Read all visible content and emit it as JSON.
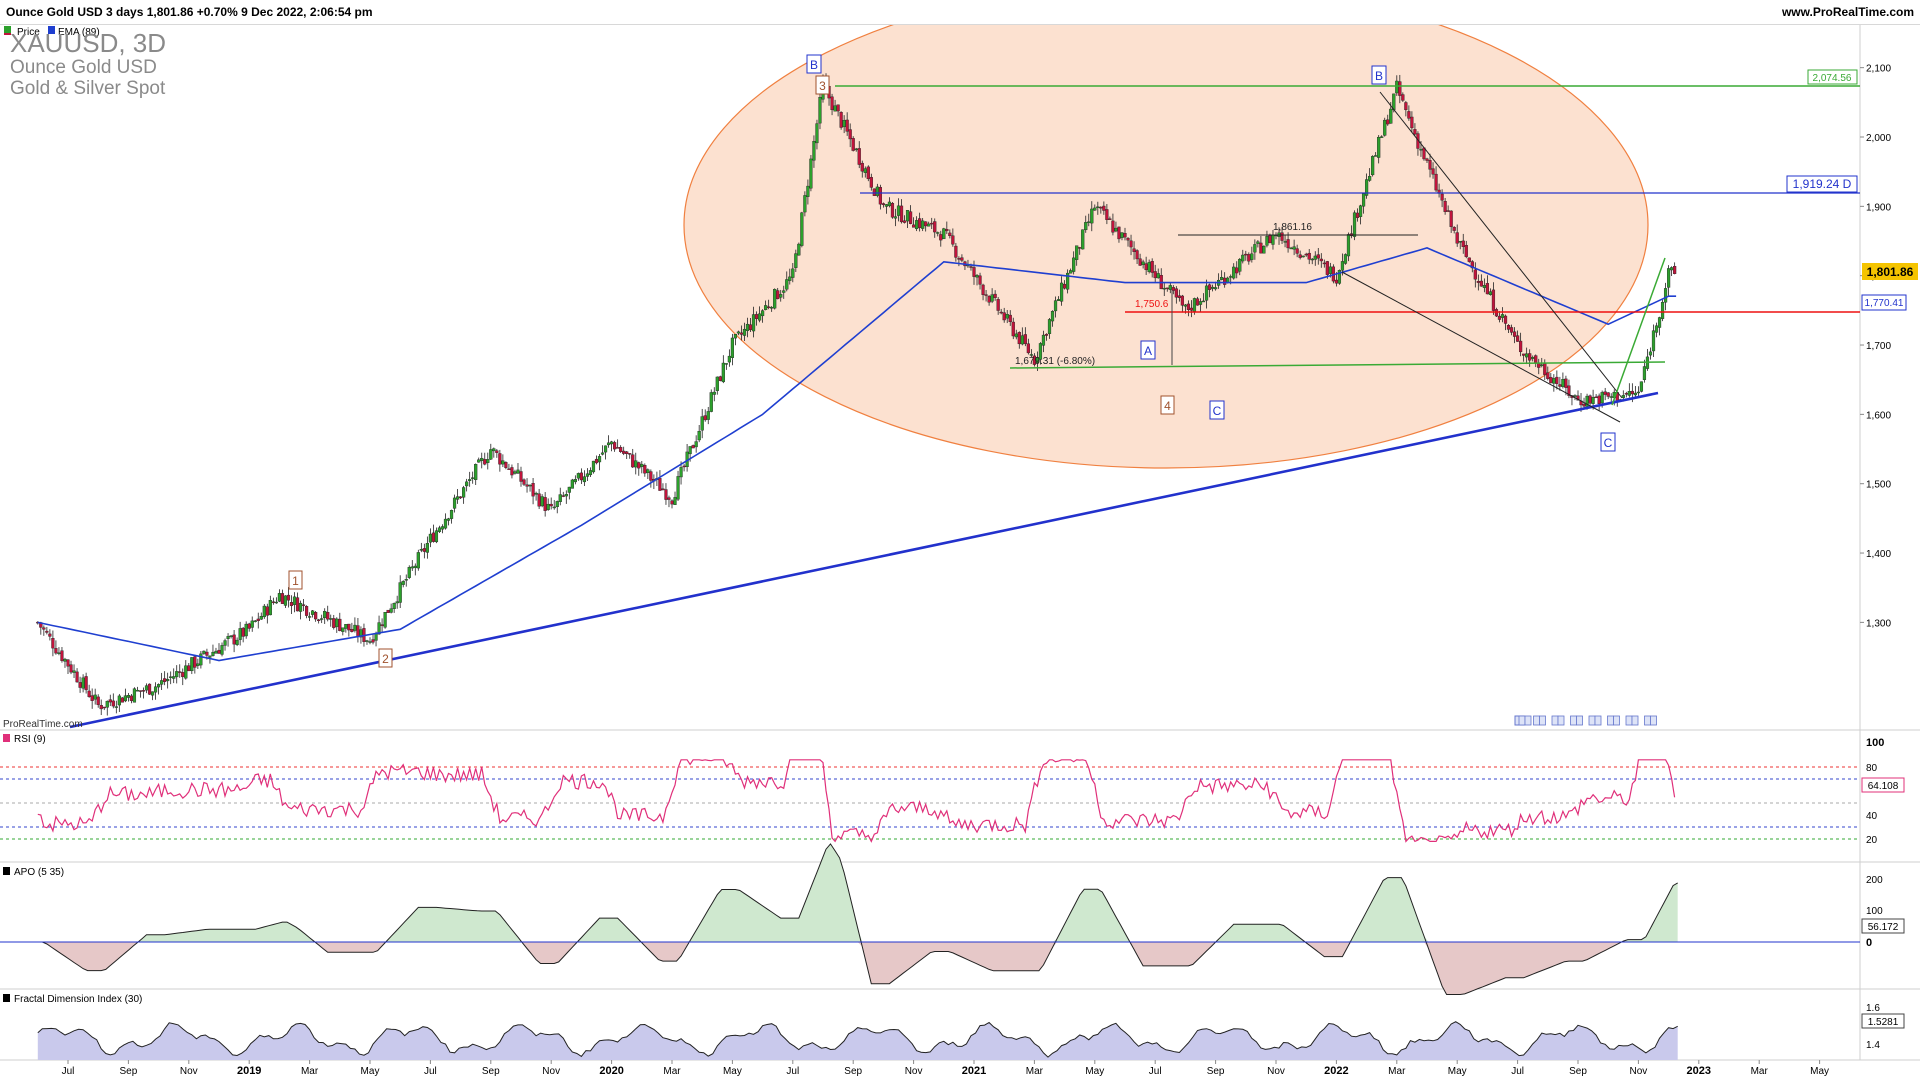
{
  "header": {
    "title_line": "Ounce Gold USD 3 days 1,801.86 +0.70% 9 Dec 2022, 2:06:54 pm",
    "site": "www.ProRealTime.com"
  },
  "main_panel": {
    "legend": [
      "Price",
      "EMA (89)"
    ],
    "symbol": "XAUUSD, 3D",
    "name": "Ounce Gold USD",
    "category": "Gold & Silver Spot",
    "watermark": "ProRealTime.com",
    "price_ticks": [
      "2,100",
      "2,000",
      "1,900",
      "1,800",
      "1,700",
      "1,600",
      "1,500",
      "1,400",
      "1,300"
    ],
    "price_tick_values": [
      2100,
      2000,
      1900,
      1800,
      1700,
      1600,
      1500,
      1400,
      1300
    ],
    "badges": {
      "last_price": "1,801.86",
      "ema": "1,770.41",
      "res_top": "2,074.56",
      "blue_line": "1,919.24 D"
    },
    "annotations": {
      "level_1861": "1,861.16",
      "level_1750": "1,750.6",
      "low_1679": "1,679.31 (-6.80%)"
    },
    "wave_labels": [
      "1",
      "2",
      "3",
      "4",
      "B",
      "B",
      "A",
      "C",
      "C"
    ]
  },
  "rsi_panel": {
    "title": "RSI (9)",
    "ticks": [
      "100",
      "80",
      "40",
      "20"
    ],
    "value": "64.108"
  },
  "apo_panel": {
    "title": "APO (5 35)",
    "ticks": [
      "200",
      "100",
      "0"
    ],
    "value": "56.172"
  },
  "fdi_panel": {
    "title": "Fractal Dimension Index (30)",
    "ticks": [
      "1.6",
      "1.4"
    ],
    "value": "1.5281"
  },
  "x_axis": {
    "labels": [
      "Jul",
      "Sep",
      "Nov",
      "2019",
      "Mar",
      "May",
      "Jul",
      "Sep",
      "Nov",
      "2020",
      "Mar",
      "May",
      "Jul",
      "Sep",
      "Nov",
      "2021",
      "Mar",
      "May",
      "Jul",
      "Sep",
      "Nov",
      "2022",
      "Mar",
      "May",
      "Jul",
      "Sep",
      "Nov",
      "2023",
      "Mar",
      "May"
    ]
  },
  "colors": {
    "up": "#2ca02c",
    "down": "#c0143c",
    "ema": "#1f3fd0",
    "ellipse_fill": "#fbd9c3",
    "ellipse_stroke": "#f08040",
    "rsi": "#e0307a",
    "apo_pos": "#cfe8cf",
    "apo_neg": "#e6c8c8",
    "fdi_fill": "#c9c9ec"
  },
  "chart_data": {
    "type": "candlestick",
    "title": "XAUUSD, 3D",
    "period": "3 days",
    "x_range": [
      "2018-06",
      "2023-05"
    ],
    "ylim": [
      1180,
      2120
    ],
    "series": [
      {
        "name": "Price",
        "approx_close_path": [
          [
            "2018-06",
            1300
          ],
          [
            "2018-08",
            1180
          ],
          [
            "2018-10",
            1210
          ],
          [
            "2019-01",
            1290
          ],
          [
            "2019-02",
            1340
          ],
          [
            "2019-05",
            1275
          ],
          [
            "2019-07",
            1420
          ],
          [
            "2019-09",
            1550
          ],
          [
            "2019-11",
            1460
          ],
          [
            "2020-01",
            1560
          ],
          [
            "2020-03",
            1480
          ],
          [
            "2020-05",
            1700
          ],
          [
            "2020-07",
            1800
          ],
          [
            "2020-08",
            2074.56
          ],
          [
            "2020-10",
            1900
          ],
          [
            "2020-12",
            1860
          ],
          [
            "2021-03",
            1679.31
          ],
          [
            "2021-05",
            1900
          ],
          [
            "2021-08",
            1750
          ],
          [
            "2021-11",
            1861.16
          ],
          [
            "2022-01",
            1800
          ],
          [
            "2022-03",
            2070
          ],
          [
            "2022-05",
            1850
          ],
          [
            "2022-07",
            1700
          ],
          [
            "2022-09",
            1620
          ],
          [
            "2022-11",
            1630
          ],
          [
            "2022-12",
            1801.86
          ]
        ]
      },
      {
        "name": "EMA (89)",
        "approx_path": [
          [
            "2018-06",
            1300
          ],
          [
            "2018-12",
            1245
          ],
          [
            "2019-06",
            1290
          ],
          [
            "2019-12",
            1440
          ],
          [
            "2020-06",
            1600
          ],
          [
            "2020-12",
            1820
          ],
          [
            "2021-06",
            1790
          ],
          [
            "2021-12",
            1790
          ],
          [
            "2022-04",
            1840
          ],
          [
            "2022-10",
            1730
          ],
          [
            "2022-12",
            1770.41
          ]
        ]
      }
    ],
    "horizontal_levels": [
      2074.56,
      1919.24,
      1861.16,
      1750.6,
      1679.31
    ],
    "indicators": {
      "RSI (9)": {
        "last": 64.108,
        "levels": [
          80,
          70,
          50,
          30,
          20
        ]
      },
      "APO (5 35)": {
        "last": 56.172,
        "zero_line": 0
      },
      "Fractal Dimension Index (30)": {
        "last": 1.5281
      }
    }
  }
}
